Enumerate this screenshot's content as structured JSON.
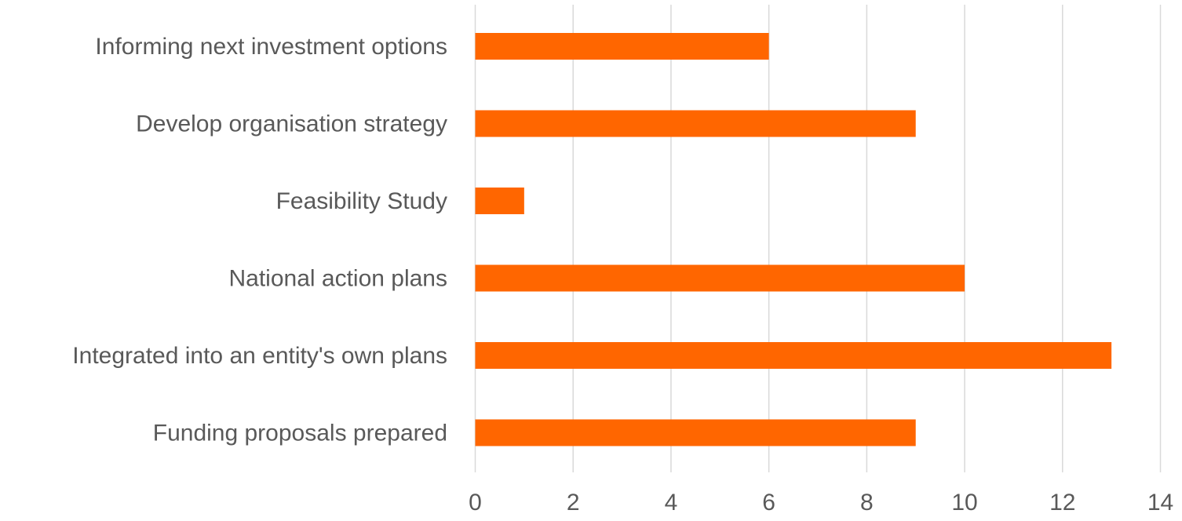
{
  "chart_data": {
    "type": "bar",
    "orientation": "horizontal",
    "title": "",
    "xlabel": "",
    "ylabel": "",
    "categories": [
      "Informing next investment options",
      "Develop organisation strategy",
      "Feasibility Study",
      "National action plans",
      "Integrated into an entity's own plans",
      "Funding proposals prepared"
    ],
    "values": [
      6,
      9,
      1,
      10,
      13,
      9
    ],
    "xlim": [
      0,
      14
    ],
    "xticks": [
      0,
      2,
      4,
      6,
      8,
      10,
      12,
      14
    ],
    "xtick_labels": [
      "0",
      "2",
      "4",
      "6",
      "8",
      "10",
      "12",
      "14"
    ],
    "grid": "vertical",
    "legend": "none",
    "bar_color": "#ff6600",
    "grid_color": "#d9d9d9",
    "text_color": "#595959"
  }
}
